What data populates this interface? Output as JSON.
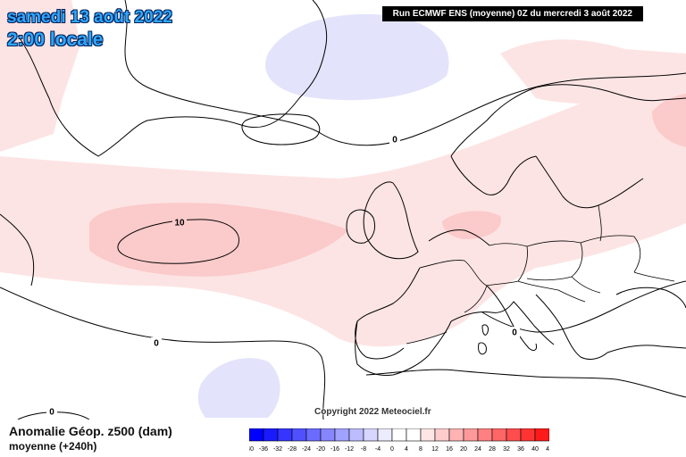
{
  "title": {
    "date": "samedi 13 août 2022",
    "time": "2:00 locale"
  },
  "run_info": "Run ECMWF ENS (moyenne) 0Z du mercredi 3 août 2022",
  "copyright": "Copyright 2022 Meteociel.fr",
  "legend": {
    "title": "Anomalie Géop. z500 (dam)",
    "subtitle": "moyenne   (+240h)",
    "ticks": [
      "-40",
      "-36",
      "-32",
      "-28",
      "-24",
      "-20",
      "-16",
      "-12",
      "-8",
      "-4",
      "0",
      "4",
      "8",
      "12",
      "16",
      "20",
      "24",
      "28",
      "32",
      "36",
      "40",
      "44"
    ],
    "colors": [
      "#0000ff",
      "#1a1aff",
      "#3535ff",
      "#5050ff",
      "#6b6bff",
      "#8686ff",
      "#a1a1ff",
      "#bcbcff",
      "#d6d6ff",
      "#ececff",
      "#ffffff",
      "#ffffff",
      "#ffe6e6",
      "#ffcccc",
      "#ffb3b3",
      "#ff9999",
      "#ff8080",
      "#ff6666",
      "#ff4d4d",
      "#ff3333",
      "#ff1a1a"
    ]
  },
  "contour_labels": {
    "zero_north": "0",
    "zero_mid": "0",
    "zero_south": "0",
    "zero_east": "0",
    "ten": "10"
  },
  "colors": {
    "positive_light": "#fde4e4",
    "positive_medium": "#fbcaca",
    "negative_light": "#e3e3fb",
    "coastline": "#000000",
    "title_blue": "#2fa8ff"
  }
}
